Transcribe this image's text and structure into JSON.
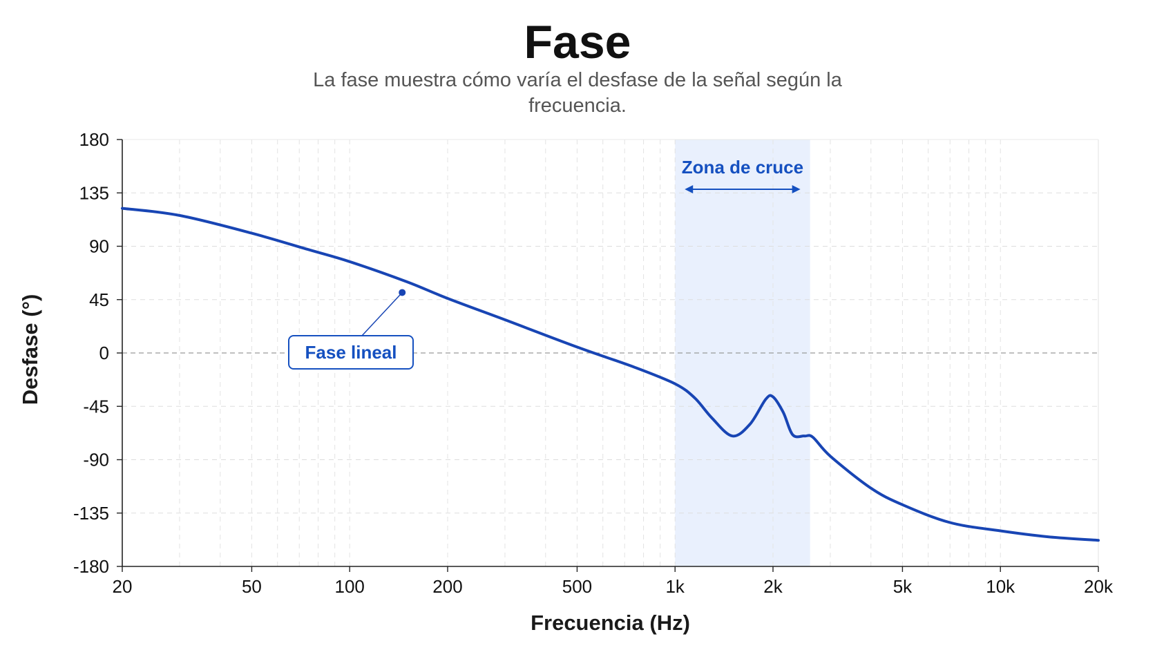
{
  "header": {
    "title": "Fase",
    "subtitle": "La fase muestra cómo varía el desfase de la señal según la frecuencia."
  },
  "colors": {
    "line": "#1845b4",
    "band": "#e9f0fd",
    "accent": "#1550c0",
    "grid": "#dddddd",
    "zero_line": "#999999"
  },
  "chart_data": {
    "type": "line",
    "xlabel": "Frecuencia (Hz)",
    "ylabel": "Desfase (°)",
    "x_scale": "log",
    "xlim": [
      20,
      20000
    ],
    "ylim": [
      -180,
      180
    ],
    "grid": true,
    "x_ticks": [
      {
        "value": 20,
        "label": "20"
      },
      {
        "value": 50,
        "label": "50"
      },
      {
        "value": 100,
        "label": "100"
      },
      {
        "value": 200,
        "label": "200"
      },
      {
        "value": 500,
        "label": "500"
      },
      {
        "value": 1000,
        "label": "1k"
      },
      {
        "value": 2000,
        "label": "2k"
      },
      {
        "value": 5000,
        "label": "5k"
      },
      {
        "value": 10000,
        "label": "10k"
      },
      {
        "value": 20000,
        "label": "20k"
      }
    ],
    "y_ticks": [
      180,
      135,
      90,
      45,
      0,
      -45,
      -90,
      -135,
      -180
    ],
    "series": [
      {
        "x": [
          20,
          30,
          50,
          75,
          100,
          150,
          200,
          300,
          500,
          750,
          1000,
          1150,
          1300,
          1500,
          1700,
          1900,
          2000,
          2150,
          2300,
          2500,
          2650,
          3000,
          4000,
          5000,
          7000,
          10000,
          14000,
          20000
        ],
        "y": [
          122,
          116,
          101,
          87,
          77,
          60,
          46,
          28,
          5,
          -12,
          -26,
          -38,
          -55,
          -70,
          -60,
          -39,
          -37,
          -50,
          -69,
          -70,
          -71,
          -87,
          -114,
          -128,
          -143,
          -150,
          -155,
          -158
        ]
      }
    ],
    "highlight": {
      "label": "Zona de cruce",
      "x_range": [
        1000,
        2600
      ]
    },
    "annotations": [
      {
        "text": "Fase lineal",
        "x": 145,
        "y": 51
      }
    ]
  }
}
